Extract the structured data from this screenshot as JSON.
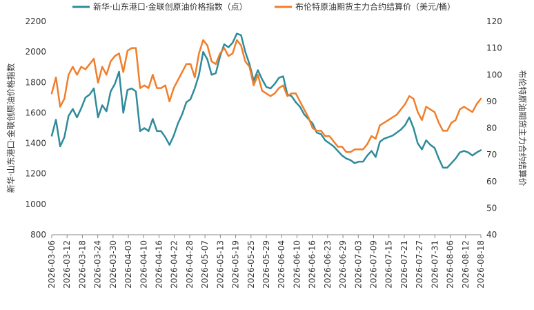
{
  "chart_data": {
    "type": "line",
    "legend_position": "top",
    "grid": false,
    "x_ticks": [
      "2026-03-06",
      "2026-03-12",
      "2026-03-18",
      "2026-03-24",
      "2026-03-30",
      "2026-04-03",
      "2026-04-10",
      "2026-04-16",
      "2026-04-22",
      "2026-04-28",
      "2026-05-07",
      "2026-05-13",
      "2026-05-19",
      "2026-05-25",
      "2026-05-29",
      "2026-06-04",
      "2026-06-10",
      "2026-06-16",
      "2026-06-23",
      "2026-06-29",
      "2026-07-03",
      "2026-07-09",
      "2026-07-15",
      "2026-07-21",
      "2026-07-27",
      "2026-07-31",
      "2026-08-06",
      "2026-08-12",
      "2026-08-18"
    ],
    "y_left": {
      "label": "新华·山东港口·金联创原油价格指数",
      "ylim": [
        800,
        2200
      ],
      "ticks": [
        800,
        1000,
        1200,
        1400,
        1600,
        1800,
        2000,
        2200
      ]
    },
    "y_right": {
      "label": "布伦特原油期货主力合约结算价",
      "ylim": [
        40,
        120
      ],
      "ticks": [
        40,
        50,
        60,
        70,
        80,
        90,
        100,
        110,
        120
      ]
    },
    "series": [
      {
        "name": "新华·山东港口·金联创原油价格指数（点）",
        "color": "#2e8b9a",
        "axis": "left",
        "values": [
          1450,
          1555,
          1380,
          1440,
          1580,
          1625,
          1570,
          1630,
          1700,
          1720,
          1760,
          1570,
          1650,
          1610,
          1740,
          1790,
          1870,
          1600,
          1750,
          1760,
          1740,
          1480,
          1500,
          1480,
          1560,
          1480,
          1480,
          1440,
          1390,
          1450,
          1530,
          1590,
          1670,
          1690,
          1760,
          1850,
          2000,
          1950,
          1850,
          1860,
          1970,
          2050,
          2030,
          2060,
          2120,
          2110,
          2000,
          1920,
          1810,
          1880,
          1820,
          1770,
          1760,
          1790,
          1830,
          1840,
          1720,
          1710,
          1670,
          1640,
          1590,
          1560,
          1530,
          1470,
          1460,
          1420,
          1400,
          1380,
          1350,
          1320,
          1300,
          1290,
          1270,
          1280,
          1280,
          1320,
          1350,
          1310,
          1410,
          1430,
          1440,
          1450,
          1470,
          1490,
          1520,
          1570,
          1500,
          1400,
          1360,
          1420,
          1390,
          1370,
          1300,
          1240,
          1240,
          1270,
          1300,
          1340,
          1350,
          1340,
          1320,
          1340,
          1355
        ]
      },
      {
        "name": "布伦特原油期货主力合约结算价（美元/桶）",
        "color": "#f07e2a",
        "axis": "right",
        "values": [
          93,
          99,
          88,
          91,
          100,
          103,
          100,
          103,
          102,
          104,
          106,
          97,
          103,
          100,
          105,
          107,
          108,
          101,
          109,
          110,
          110,
          95,
          96,
          95,
          100,
          95,
          95,
          96,
          90,
          95,
          98,
          101,
          104,
          104,
          99,
          108,
          113,
          111,
          105,
          104,
          108,
          110,
          107,
          108,
          113,
          111,
          105,
          103,
          96,
          100,
          94,
          93,
          92,
          93,
          95,
          96,
          92,
          93,
          93,
          90,
          87,
          84,
          80,
          79,
          79,
          77,
          77,
          75,
          73,
          73,
          71,
          71,
          72,
          72,
          72,
          74,
          77,
          76,
          81,
          82,
          83,
          84,
          85,
          87,
          89,
          92,
          91,
          86,
          83,
          88,
          87,
          86,
          82,
          79,
          79,
          82,
          83,
          87,
          88,
          87,
          86,
          89,
          91
        ]
      }
    ]
  }
}
